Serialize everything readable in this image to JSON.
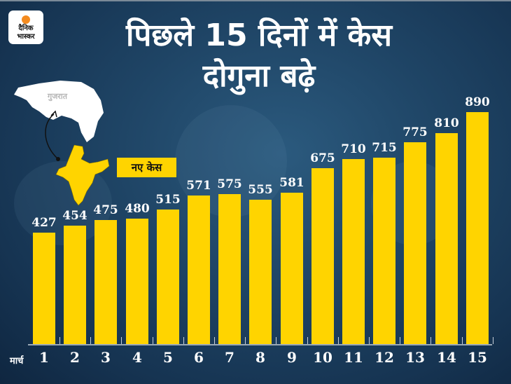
{
  "brand": {
    "logo_line1": "दैनिक",
    "logo_line2": "भास्कर",
    "logo_dot_color": "#f48b1f"
  },
  "title": {
    "line1": "पिछले 15 दिनों में केस",
    "line2": "दोगुना बढ़े"
  },
  "map": {
    "state_label": "गुजरात",
    "map_color": "#ffd400"
  },
  "legend": {
    "label": "नए केस",
    "color": "#ffd400"
  },
  "x_axis_prefix": "मार्च",
  "colors": {
    "bar": "#ffd400",
    "background": "#1f4566",
    "text": "#ffffff"
  },
  "chart_data": {
    "type": "bar",
    "title": "पिछले 15 दिनों में केस दोगुना बढ़े",
    "xlabel": "मार्च",
    "ylabel": "",
    "legend": [
      "नए केस"
    ],
    "categories": [
      "1",
      "2",
      "3",
      "4",
      "5",
      "6",
      "7",
      "8",
      "9",
      "10",
      "11",
      "12",
      "13",
      "14",
      "15"
    ],
    "values": [
      427,
      454,
      475,
      480,
      515,
      571,
      575,
      555,
      581,
      675,
      710,
      715,
      775,
      810,
      890
    ],
    "data_labels": true,
    "grid": false,
    "ylim": [
      0,
      890
    ]
  }
}
